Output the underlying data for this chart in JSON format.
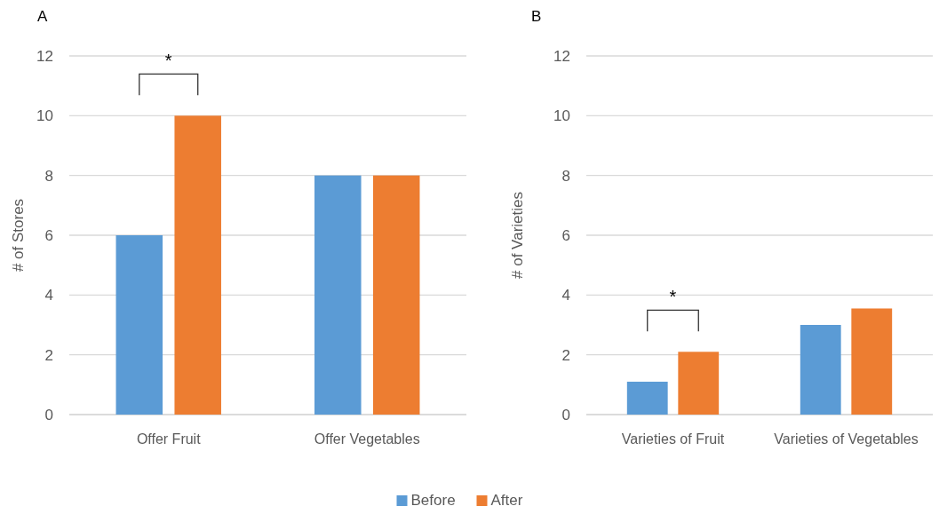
{
  "chart_data": [
    {
      "type": "bar",
      "title": "A",
      "ylabel": "# of Stores",
      "categories": [
        "Offer Fruit",
        "Offer Vegetables"
      ],
      "series": [
        {
          "name": "Before",
          "color": "#5b9bd5",
          "values": [
            6,
            8
          ]
        },
        {
          "name": "After",
          "color": "#ed7d31",
          "values": [
            10,
            8
          ]
        }
      ],
      "ylim": [
        0,
        12
      ],
      "yticks": [
        0,
        2,
        4,
        6,
        8,
        10,
        12
      ],
      "grid": "y",
      "legend": "bottom",
      "annotations": [
        "*"
      ]
    },
    {
      "type": "bar",
      "title": "B",
      "ylabel": "# of Varieties",
      "categories": [
        "Varieties of Fruit",
        "Varieties of Vegetables"
      ],
      "series": [
        {
          "name": "Before",
          "color": "#5b9bd5",
          "values": [
            1.1,
            3.0
          ]
        },
        {
          "name": "After",
          "color": "#ed7d31",
          "values": [
            2.1,
            3.55
          ]
        }
      ],
      "ylim": [
        0,
        12
      ],
      "yticks": [
        0,
        2,
        4,
        6,
        8,
        10,
        12
      ],
      "grid": "y",
      "legend": "bottom",
      "annotations": [
        "*"
      ]
    }
  ]
}
